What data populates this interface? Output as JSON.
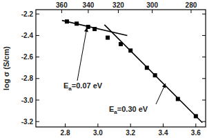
{
  "chart_data": {
    "type": "scatter",
    "y_label": "log σ (S/cm)",
    "xlim": [
      2.62,
      3.66
    ],
    "ylim": [
      -3.25,
      -2.16
    ],
    "xticks": [
      2.8,
      {
        "value": 3.0,
        "label": "3.0"
      },
      3.2,
      3.4,
      3.6
    ],
    "yticks": [
      -2.2,
      -2.4,
      -2.6,
      -2.8,
      {
        "value": -3.0,
        "label": "-3.0"
      },
      -3.2
    ],
    "x2ticks": [
      {
        "value": 2.778,
        "label": "360"
      },
      {
        "value": 2.941,
        "label": "340"
      },
      {
        "value": 3.125,
        "label": "320"
      },
      {
        "value": 3.333,
        "label": "300"
      },
      {
        "value": 3.571,
        "label": "280"
      }
    ],
    "grid": false,
    "series": [
      {
        "type": "scatter",
        "marker": "square",
        "color": "#000000",
        "x": [
          2.81,
          2.87,
          2.94,
          2.98,
          3.06,
          3.14,
          3.2,
          3.3,
          3.35,
          3.49,
          3.6
        ],
        "values": [
          -2.27,
          -2.29,
          -2.32,
          -2.34,
          -2.42,
          -2.48,
          -2.54,
          -2.7,
          -2.77,
          -2.99,
          -3.15
        ]
      },
      {
        "type": "line",
        "line_style": "solid",
        "color": "#000000",
        "x": [
          2.78,
          3.18
        ],
        "values": [
          -2.26,
          -2.4
        ]
      },
      {
        "type": "line",
        "line_style": "solid",
        "color": "#000000",
        "x": [
          3.04,
          3.64
        ],
        "values": [
          -2.3,
          -3.21
        ]
      }
    ],
    "annotations": [
      {
        "text": "Ea=0.07 eV"
      },
      {
        "text": "Ea=0.30 eV"
      }
    ]
  }
}
